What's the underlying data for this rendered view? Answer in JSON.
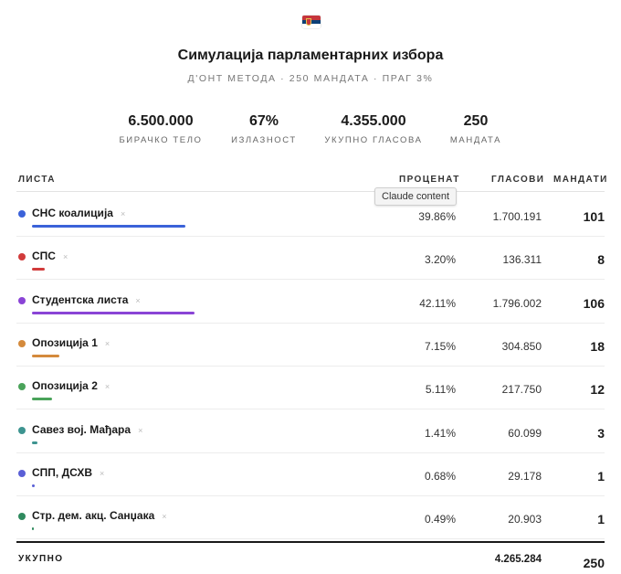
{
  "header": {
    "flag_icon": "serbia-flag-icon",
    "title": "Симулација парламентарних избора",
    "subtitle": "Д'ОНТ МЕТОДА · 250 МАНДАТА · ПРАГ 3%"
  },
  "stats": [
    {
      "value": "6.500.000",
      "label": "БИРАЧКО ТЕЛО"
    },
    {
      "value": "67%",
      "label": "ИЗЛАЗНОСТ"
    },
    {
      "value": "4.355.000",
      "label": "УКУПНО ГЛАСОВА"
    },
    {
      "value": "250",
      "label": "МАНДАТА"
    }
  ],
  "table": {
    "headers": {
      "list": "ЛИСТА",
      "percent": "ПРОЦЕНАТ",
      "votes": "ГЛАСОВИ",
      "seats": "МАНДАТИ"
    },
    "remove_glyph": "×",
    "rows": [
      {
        "name": "СНС коалиција",
        "percent": "39.86%",
        "share": 39.86,
        "votes": "1.700.191",
        "seats": "101",
        "color": "#3b62d9"
      },
      {
        "name": "СПС",
        "percent": "3.20%",
        "share": 3.2,
        "votes": "136.311",
        "seats": "8",
        "color": "#d13b3b"
      },
      {
        "name": "Студентска листа",
        "percent": "42.11%",
        "share": 42.11,
        "votes": "1.796.002",
        "seats": "106",
        "color": "#8a44d6"
      },
      {
        "name": "Опозиција 1",
        "percent": "7.15%",
        "share": 7.15,
        "votes": "304.850",
        "seats": "18",
        "color": "#d48a3c"
      },
      {
        "name": "Опозиција 2",
        "percent": "5.11%",
        "share": 5.11,
        "votes": "217.750",
        "seats": "12",
        "color": "#4aa35a"
      },
      {
        "name": "Савез вој. Мађара",
        "percent": "1.41%",
        "share": 1.41,
        "votes": "60.099",
        "seats": "3",
        "color": "#3d9490"
      },
      {
        "name": "СПП, ДСХВ",
        "percent": "0.68%",
        "share": 0.68,
        "votes": "29.178",
        "seats": "1",
        "color": "#5a5fd6"
      },
      {
        "name": "Стр. дем. акц. Санџака",
        "percent": "0.49%",
        "share": 0.49,
        "votes": "20.903",
        "seats": "1",
        "color": "#2f8a5e"
      }
    ],
    "total": {
      "label": "УКУПНО",
      "votes": "4.265.284",
      "seats": "250"
    }
  },
  "tooltip": {
    "text": "Claude content"
  }
}
